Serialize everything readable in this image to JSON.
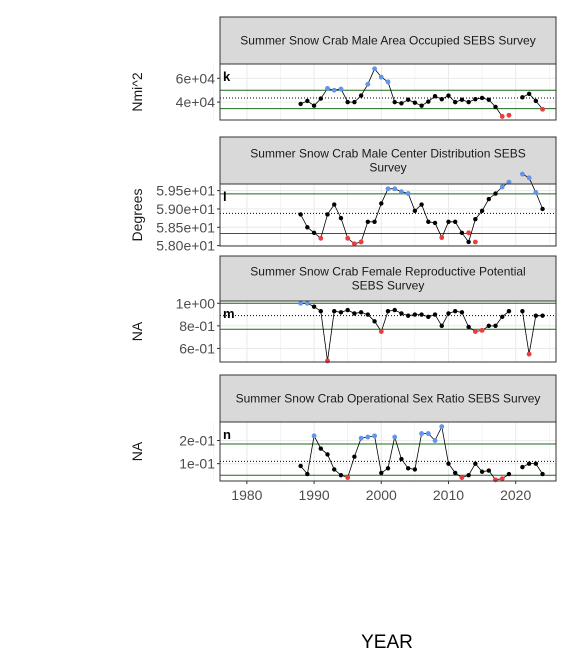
{
  "figure": {
    "x_title": "YEAR",
    "x_ticks": [
      1980,
      1990,
      2000,
      2010,
      2020
    ],
    "x_range": [
      1976,
      2026
    ]
  },
  "colors": {
    "point": "#000000",
    "high": "#6495ED",
    "low": "#EE3B3B",
    "mean_line": "#000000",
    "sd_line": "#1B6B1B",
    "strip_fill": "#D9D9D9",
    "border": "#333333",
    "grid": "#EBEBEB"
  },
  "chart_data": [
    {
      "type": "line",
      "tag": "k",
      "title": "Summer Snow Crab Male Area Occupied SEBS Survey",
      "ylabel": "Nmi^2",
      "ylim": [
        25000,
        72000
      ],
      "y_ticks": [
        40000,
        60000
      ],
      "y_tick_labels": [
        "4e+04",
        "6e+04"
      ],
      "mean": 43500,
      "sd_lines": [
        34500,
        50000
      ],
      "series": [
        {
          "x": [
            1988,
            1989,
            1990,
            1991,
            1992,
            1993,
            1994,
            1995,
            1996,
            1997,
            1998,
            1999,
            2000,
            2001,
            2002,
            2003,
            2004,
            2005,
            2006,
            2007,
            2008,
            2009,
            2010,
            2011,
            2012,
            2013,
            2014,
            2015,
            2016,
            2017,
            2018
          ],
          "y": [
            38500,
            41000,
            37000,
            43000,
            51500,
            50000,
            51000,
            40000,
            40000,
            45500,
            55000,
            68000,
            61000,
            57000,
            40000,
            39000,
            42000,
            39500,
            37000,
            40500,
            45000,
            42500,
            45500,
            40000,
            42000,
            40000,
            42500,
            43500,
            42000,
            36000,
            28000
          ]
        },
        {
          "x": [
            2019
          ],
          "y": [
            29000
          ]
        },
        {
          "x": [
            2021,
            2022,
            2023,
            2024
          ],
          "y": [
            44000,
            47000,
            41000,
            34000
          ]
        }
      ],
      "high_points": {
        "x": [
          1992,
          1993,
          1994,
          1998,
          1999,
          2000,
          2001
        ],
        "y": [
          51500,
          50000,
          51000,
          55000,
          68000,
          61000,
          57000
        ]
      },
      "low_points": {
        "x": [
          2018,
          2019,
          2024
        ],
        "y": [
          28000,
          29000,
          34000
        ]
      }
    },
    {
      "type": "line",
      "tag": "l",
      "title": "Summer Snow Crab Male Center Distribution SEBS Survey",
      "ylabel": "Degrees",
      "ylim": [
        57.99,
        59.68
      ],
      "y_ticks": [
        58.0,
        58.5,
        59.0,
        59.5
      ],
      "y_tick_labels": [
        "5.80e+01",
        "5.85e+01",
        "5.90e+01",
        "5.95e+01"
      ],
      "mean": 58.88,
      "sd_lines": [
        58.33,
        59.41
      ],
      "series": [
        {
          "x": [
            1988,
            1989,
            1990,
            1991,
            1992,
            1993,
            1994,
            1995,
            1996,
            1997,
            1998,
            1999,
            2000,
            2001,
            2002,
            2003,
            2004,
            2005,
            2006,
            2007,
            2008,
            2009,
            2010,
            2011,
            2012,
            2013,
            2014,
            2015,
            2016,
            2017,
            2018,
            2019
          ],
          "y": [
            58.85,
            58.5,
            58.35,
            58.2,
            58.85,
            59.12,
            58.75,
            58.2,
            58.05,
            58.1,
            58.65,
            58.65,
            59.15,
            59.55,
            59.55,
            59.47,
            59.42,
            58.95,
            59.12,
            58.65,
            58.62,
            58.22,
            58.65,
            58.65,
            58.35,
            58.1,
            58.72,
            58.95,
            59.27,
            59.42,
            59.6,
            59.73
          ]
        },
        {
          "x": [
            2021,
            2022,
            2023,
            2024
          ],
          "y": [
            59.95,
            59.85,
            59.45,
            59.0
          ]
        }
      ],
      "high_points": {
        "x": [
          2001,
          2002,
          2003,
          2004,
          2018,
          2019,
          2021,
          2022,
          2023
        ],
        "y": [
          59.55,
          59.55,
          59.47,
          59.42,
          59.6,
          59.73,
          59.95,
          59.85,
          59.45
        ]
      },
      "low_points": {
        "x": [
          1991,
          1995,
          1996,
          1997,
          2009,
          2013,
          2014
        ],
        "y": [
          58.2,
          58.2,
          58.05,
          58.1,
          58.22,
          58.35,
          58.1
        ]
      }
    },
    {
      "type": "line",
      "tag": "m",
      "title": "Summer Snow Crab Female Reproductive Potential SEBS Survey",
      "ylabel": "NA",
      "ylim": [
        0.48,
        1.02
      ],
      "y_ticks": [
        0.6,
        0.8,
        1.0
      ],
      "y_tick_labels": [
        "6e-01",
        "8e-01",
        "1e+00"
      ],
      "mean": 0.89,
      "sd_lines": [
        0.77,
        1.0
      ],
      "series": [
        {
          "x": [
            1988,
            1989,
            1990,
            1991,
            1992,
            1993,
            1994,
            1995,
            1996,
            1997,
            1998,
            1999,
            2000,
            2001,
            2002,
            2003,
            2004,
            2005,
            2006,
            2007,
            2008,
            2009,
            2010,
            2011,
            2012,
            2013,
            2014,
            2015,
            2016,
            2017,
            2018,
            2019
          ],
          "y": [
            1.0,
            1.0,
            0.97,
            0.93,
            0.49,
            0.93,
            0.92,
            0.94,
            0.91,
            0.92,
            0.9,
            0.84,
            0.75,
            0.93,
            0.94,
            0.91,
            0.89,
            0.9,
            0.9,
            0.88,
            0.9,
            0.8,
            0.91,
            0.93,
            0.92,
            0.79,
            0.75,
            0.76,
            0.8,
            0.8,
            0.88,
            0.93
          ]
        },
        {
          "x": [
            2021,
            2022,
            2023,
            2024
          ],
          "y": [
            0.93,
            0.55,
            0.89,
            0.89
          ]
        }
      ],
      "high_points": {
        "x": [
          1988,
          1989
        ],
        "y": [
          1.0,
          1.0
        ]
      },
      "low_points": {
        "x": [
          1992,
          2000,
          2014,
          2015,
          2022
        ],
        "y": [
          0.49,
          0.75,
          0.75,
          0.76,
          0.55
        ]
      }
    },
    {
      "type": "line",
      "tag": "n",
      "title": "Summer Snow Crab Operational Sex Ratio SEBS Survey",
      "ylabel": "NA",
      "ylim": [
        0.025,
        0.28
      ],
      "y_ticks": [
        0.1,
        0.2
      ],
      "y_tick_labels": [
        "1e-01",
        "2e-01"
      ],
      "mean": 0.11,
      "sd_lines": [
        0.05,
        0.185
      ],
      "series": [
        {
          "x": [
            1988,
            1989,
            1990,
            1991,
            1992,
            1993,
            1994,
            1995,
            1996,
            1997,
            1998,
            1999,
            2000,
            2001,
            2002,
            2003,
            2004,
            2005,
            2006,
            2007,
            2008,
            2009,
            2010,
            2011,
            2012,
            2013,
            2014,
            2015,
            2016,
            2017,
            2018,
            2019
          ],
          "y": [
            0.09,
            0.055,
            0.22,
            0.165,
            0.14,
            0.075,
            0.05,
            0.04,
            0.13,
            0.21,
            0.215,
            0.22,
            0.06,
            0.08,
            0.215,
            0.12,
            0.08,
            0.075,
            0.23,
            0.23,
            0.2,
            0.26,
            0.1,
            0.06,
            0.04,
            0.05,
            0.1,
            0.065,
            0.07,
            0.03,
            0.035,
            0.055
          ]
        },
        {
          "x": [
            2021,
            2022,
            2023,
            2024
          ],
          "y": [
            0.085,
            0.1,
            0.1,
            0.055
          ]
        }
      ],
      "high_points": {
        "x": [
          1990,
          1997,
          1998,
          1999,
          2002,
          2006,
          2007,
          2008,
          2009
        ],
        "y": [
          0.22,
          0.21,
          0.215,
          0.22,
          0.215,
          0.23,
          0.23,
          0.2,
          0.26
        ]
      },
      "low_points": {
        "x": [
          1995,
          2012,
          2017,
          2018
        ],
        "y": [
          0.04,
          0.04,
          0.03,
          0.035
        ]
      }
    }
  ]
}
